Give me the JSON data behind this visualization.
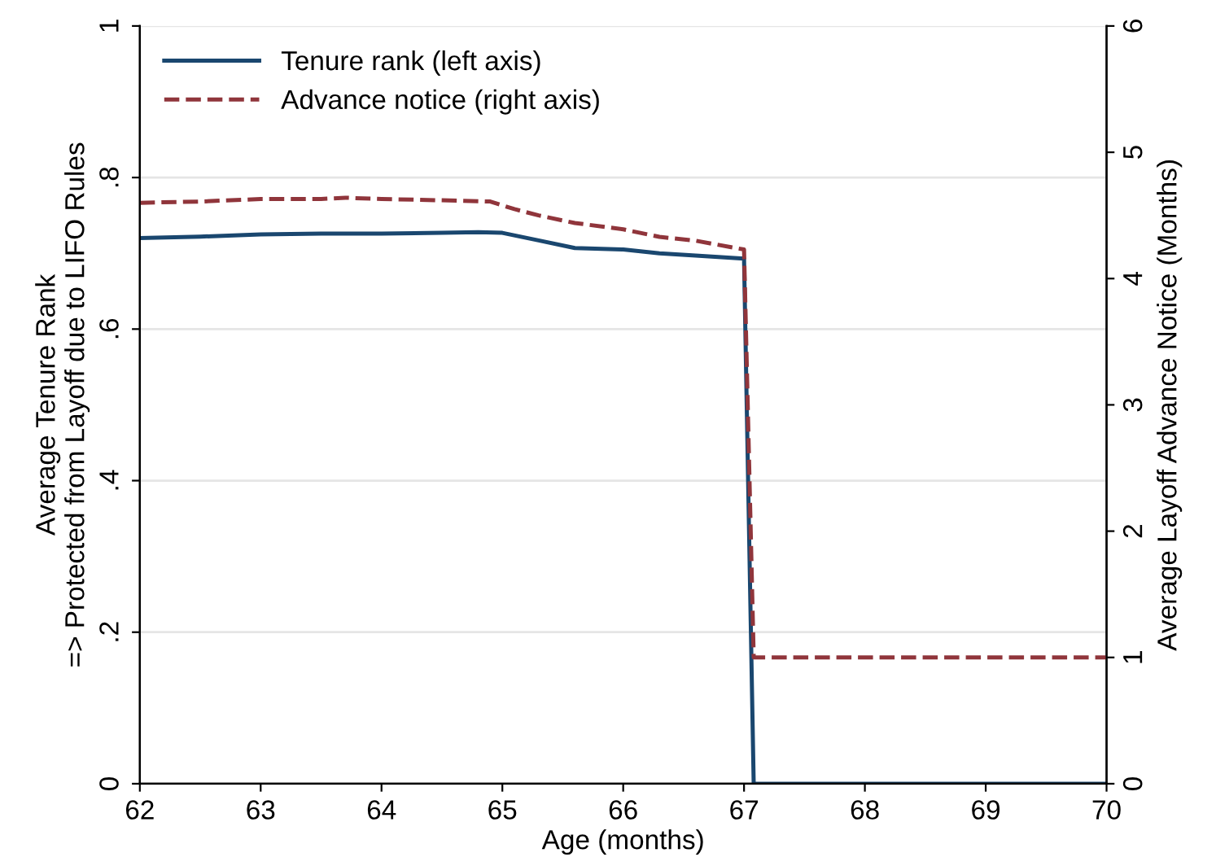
{
  "chart_data": {
    "type": "line",
    "xlabel": "Age (months)",
    "ylabel": "Average Tenure Rank\n=> Protected from Layoff due to LIFO Rules",
    "y2label": "Average Layoff Advance Notice (Months)",
    "xlim": [
      62,
      70
    ],
    "xticks": [
      62,
      63,
      64,
      65,
      66,
      67,
      68,
      69,
      70
    ],
    "ylim": [
      0,
      1
    ],
    "yticks": [
      {
        "value": 0,
        "label": "0"
      },
      {
        "value": 0.2,
        "label": ".2"
      },
      {
        "value": 0.4,
        "label": ".4"
      },
      {
        "value": 0.6,
        "label": ".6"
      },
      {
        "value": 0.8,
        "label": ".8"
      },
      {
        "value": 1,
        "label": "1"
      }
    ],
    "y2lim": [
      0,
      6
    ],
    "y2ticks": [
      0,
      1,
      2,
      3,
      4,
      5,
      6
    ],
    "grid": "y",
    "legend": "top left",
    "series": [
      {
        "name": "Tenure rank (left axis)",
        "color": "#1a476f",
        "line_style": "solid",
        "x": [
          62,
          62.5,
          63,
          63.5,
          64,
          64.5,
          64.8,
          65,
          65.3,
          65.6,
          66,
          66.3,
          66.6,
          67,
          67.08,
          67.5,
          68,
          69,
          70
        ],
        "values": [
          0.72,
          0.722,
          0.725,
          0.726,
          0.726,
          0.727,
          0.728,
          0.727,
          0.717,
          0.707,
          0.705,
          0.7,
          0.697,
          0.693,
          0,
          0,
          0,
          0,
          0
        ]
      },
      {
        "name": "Advance notice (right axis)",
        "color": "#90353b",
        "line_style": "dashed",
        "axis": "y2",
        "x": [
          62,
          62.5,
          63,
          63.5,
          63.7,
          64,
          64.5,
          64.9,
          65.1,
          65.3,
          65.6,
          66,
          66.3,
          66.6,
          67,
          67.08,
          67.5,
          68,
          69,
          70
        ],
        "values": [
          4.6,
          4.61,
          4.63,
          4.63,
          4.64,
          4.63,
          4.62,
          4.61,
          4.55,
          4.5,
          4.44,
          4.39,
          4.33,
          4.3,
          4.23,
          1,
          1,
          1,
          1,
          1
        ]
      }
    ]
  }
}
